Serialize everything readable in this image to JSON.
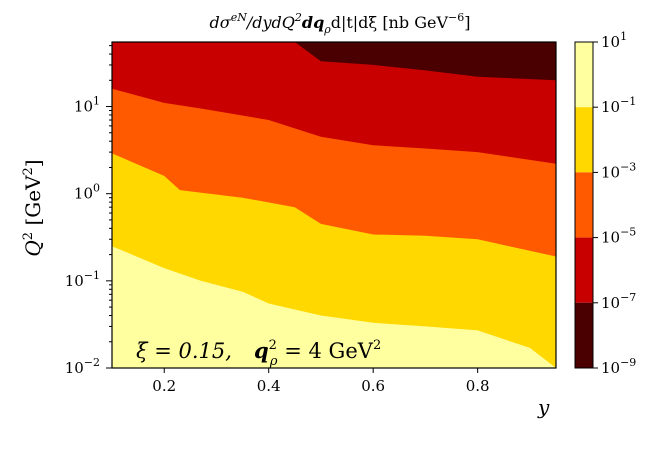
{
  "chart_data": {
    "type": "filled-contour",
    "title": "dσ^{eN} / dy dQ² dq²_ρ d|t| dξ  [nb GeV⁻⁶]",
    "title_parts": {
      "main": "dσ",
      "sup1": "eN",
      "mid1": "/dydQ",
      "sup2": "2",
      "mid2": "dq",
      "sub3": "ρ",
      "mid3": "d|t|dξ [nb GeV",
      "sup4": "−6",
      "end": "]"
    },
    "xlabel": "y",
    "ylabel": "Q² [GeV²]",
    "ylabel_parts": {
      "base": "Q",
      "sup": "2",
      "unit": " [GeV",
      "unit_sup": "2",
      "end": "]"
    },
    "x_range": [
      0.1,
      0.95
    ],
    "y_range": [
      0.01,
      55
    ],
    "y_scale": "log",
    "x_ticks": [
      0.2,
      0.4,
      0.6,
      0.8
    ],
    "x_tick_labels": [
      "0.2",
      "0.4",
      "0.6",
      "0.8"
    ],
    "y_ticks": [
      {
        "value": 0.01,
        "base": "10",
        "exp": "−2"
      },
      {
        "value": 0.1,
        "base": "10",
        "exp": "−1"
      },
      {
        "value": 1,
        "base": "10",
        "exp": "0"
      },
      {
        "value": 10,
        "base": "10",
        "exp": "1"
      }
    ],
    "annotation": "ξ = 0.15,   q²_ρ = 4 GeV²",
    "annotation_parts": {
      "xi": "ξ = 0.15,",
      "q": "q",
      "q_sup": "2",
      "q_sub": "ρ",
      "val": " = 4 GeV",
      "val_sup": "2"
    },
    "levels": [
      {
        "range": "10^-9 to 10^-7",
        "color": "#4a0000"
      },
      {
        "range": "10^-7 to 10^-5",
        "color": "#c80000"
      },
      {
        "range": "10^-5 to 10^-3",
        "color": "#ff5a00"
      },
      {
        "range": "10^-3 to 10^-1",
        "color": "#ffd800"
      },
      {
        "range": "10^-1 to 10^1",
        "color": "#ffffa0"
      }
    ],
    "colorbar_ticks": [
      {
        "base": "10",
        "exp": "1"
      },
      {
        "base": "10",
        "exp": "−1"
      },
      {
        "base": "10",
        "exp": "−3"
      },
      {
        "base": "10",
        "exp": "−5"
      },
      {
        "base": "10",
        "exp": "−7"
      },
      {
        "base": "10",
        "exp": "−9"
      }
    ],
    "boundaries": [
      {
        "name": "10^-7 contour",
        "points": [
          [
            0.1,
            55
          ],
          [
            0.45,
            55
          ],
          [
            0.5,
            33
          ],
          [
            0.6,
            30
          ],
          [
            0.7,
            26
          ],
          [
            0.8,
            22
          ],
          [
            0.95,
            20
          ]
        ]
      },
      {
        "name": "10^-5 contour",
        "points": [
          [
            0.1,
            16
          ],
          [
            0.2,
            11
          ],
          [
            0.27,
            9.5
          ],
          [
            0.4,
            7
          ],
          [
            0.5,
            4.5
          ],
          [
            0.6,
            3.6
          ],
          [
            0.7,
            3.3
          ],
          [
            0.8,
            3.0
          ],
          [
            0.95,
            2.2
          ]
        ]
      },
      {
        "name": "10^-3 contour",
        "points": [
          [
            0.1,
            2.9
          ],
          [
            0.2,
            1.6
          ],
          [
            0.23,
            1.1
          ],
          [
            0.35,
            0.9
          ],
          [
            0.45,
            0.7
          ],
          [
            0.5,
            0.45
          ],
          [
            0.6,
            0.34
          ],
          [
            0.7,
            0.33
          ],
          [
            0.8,
            0.3
          ],
          [
            0.95,
            0.19
          ]
        ]
      },
      {
        "name": "10^-1 contour",
        "points": [
          [
            0.1,
            0.25
          ],
          [
            0.2,
            0.14
          ],
          [
            0.27,
            0.1
          ],
          [
            0.35,
            0.075
          ],
          [
            0.4,
            0.055
          ],
          [
            0.5,
            0.04
          ],
          [
            0.6,
            0.033
          ],
          [
            0.7,
            0.03
          ],
          [
            0.8,
            0.027
          ],
          [
            0.9,
            0.017
          ],
          [
            0.95,
            0.01
          ]
        ]
      }
    ]
  }
}
